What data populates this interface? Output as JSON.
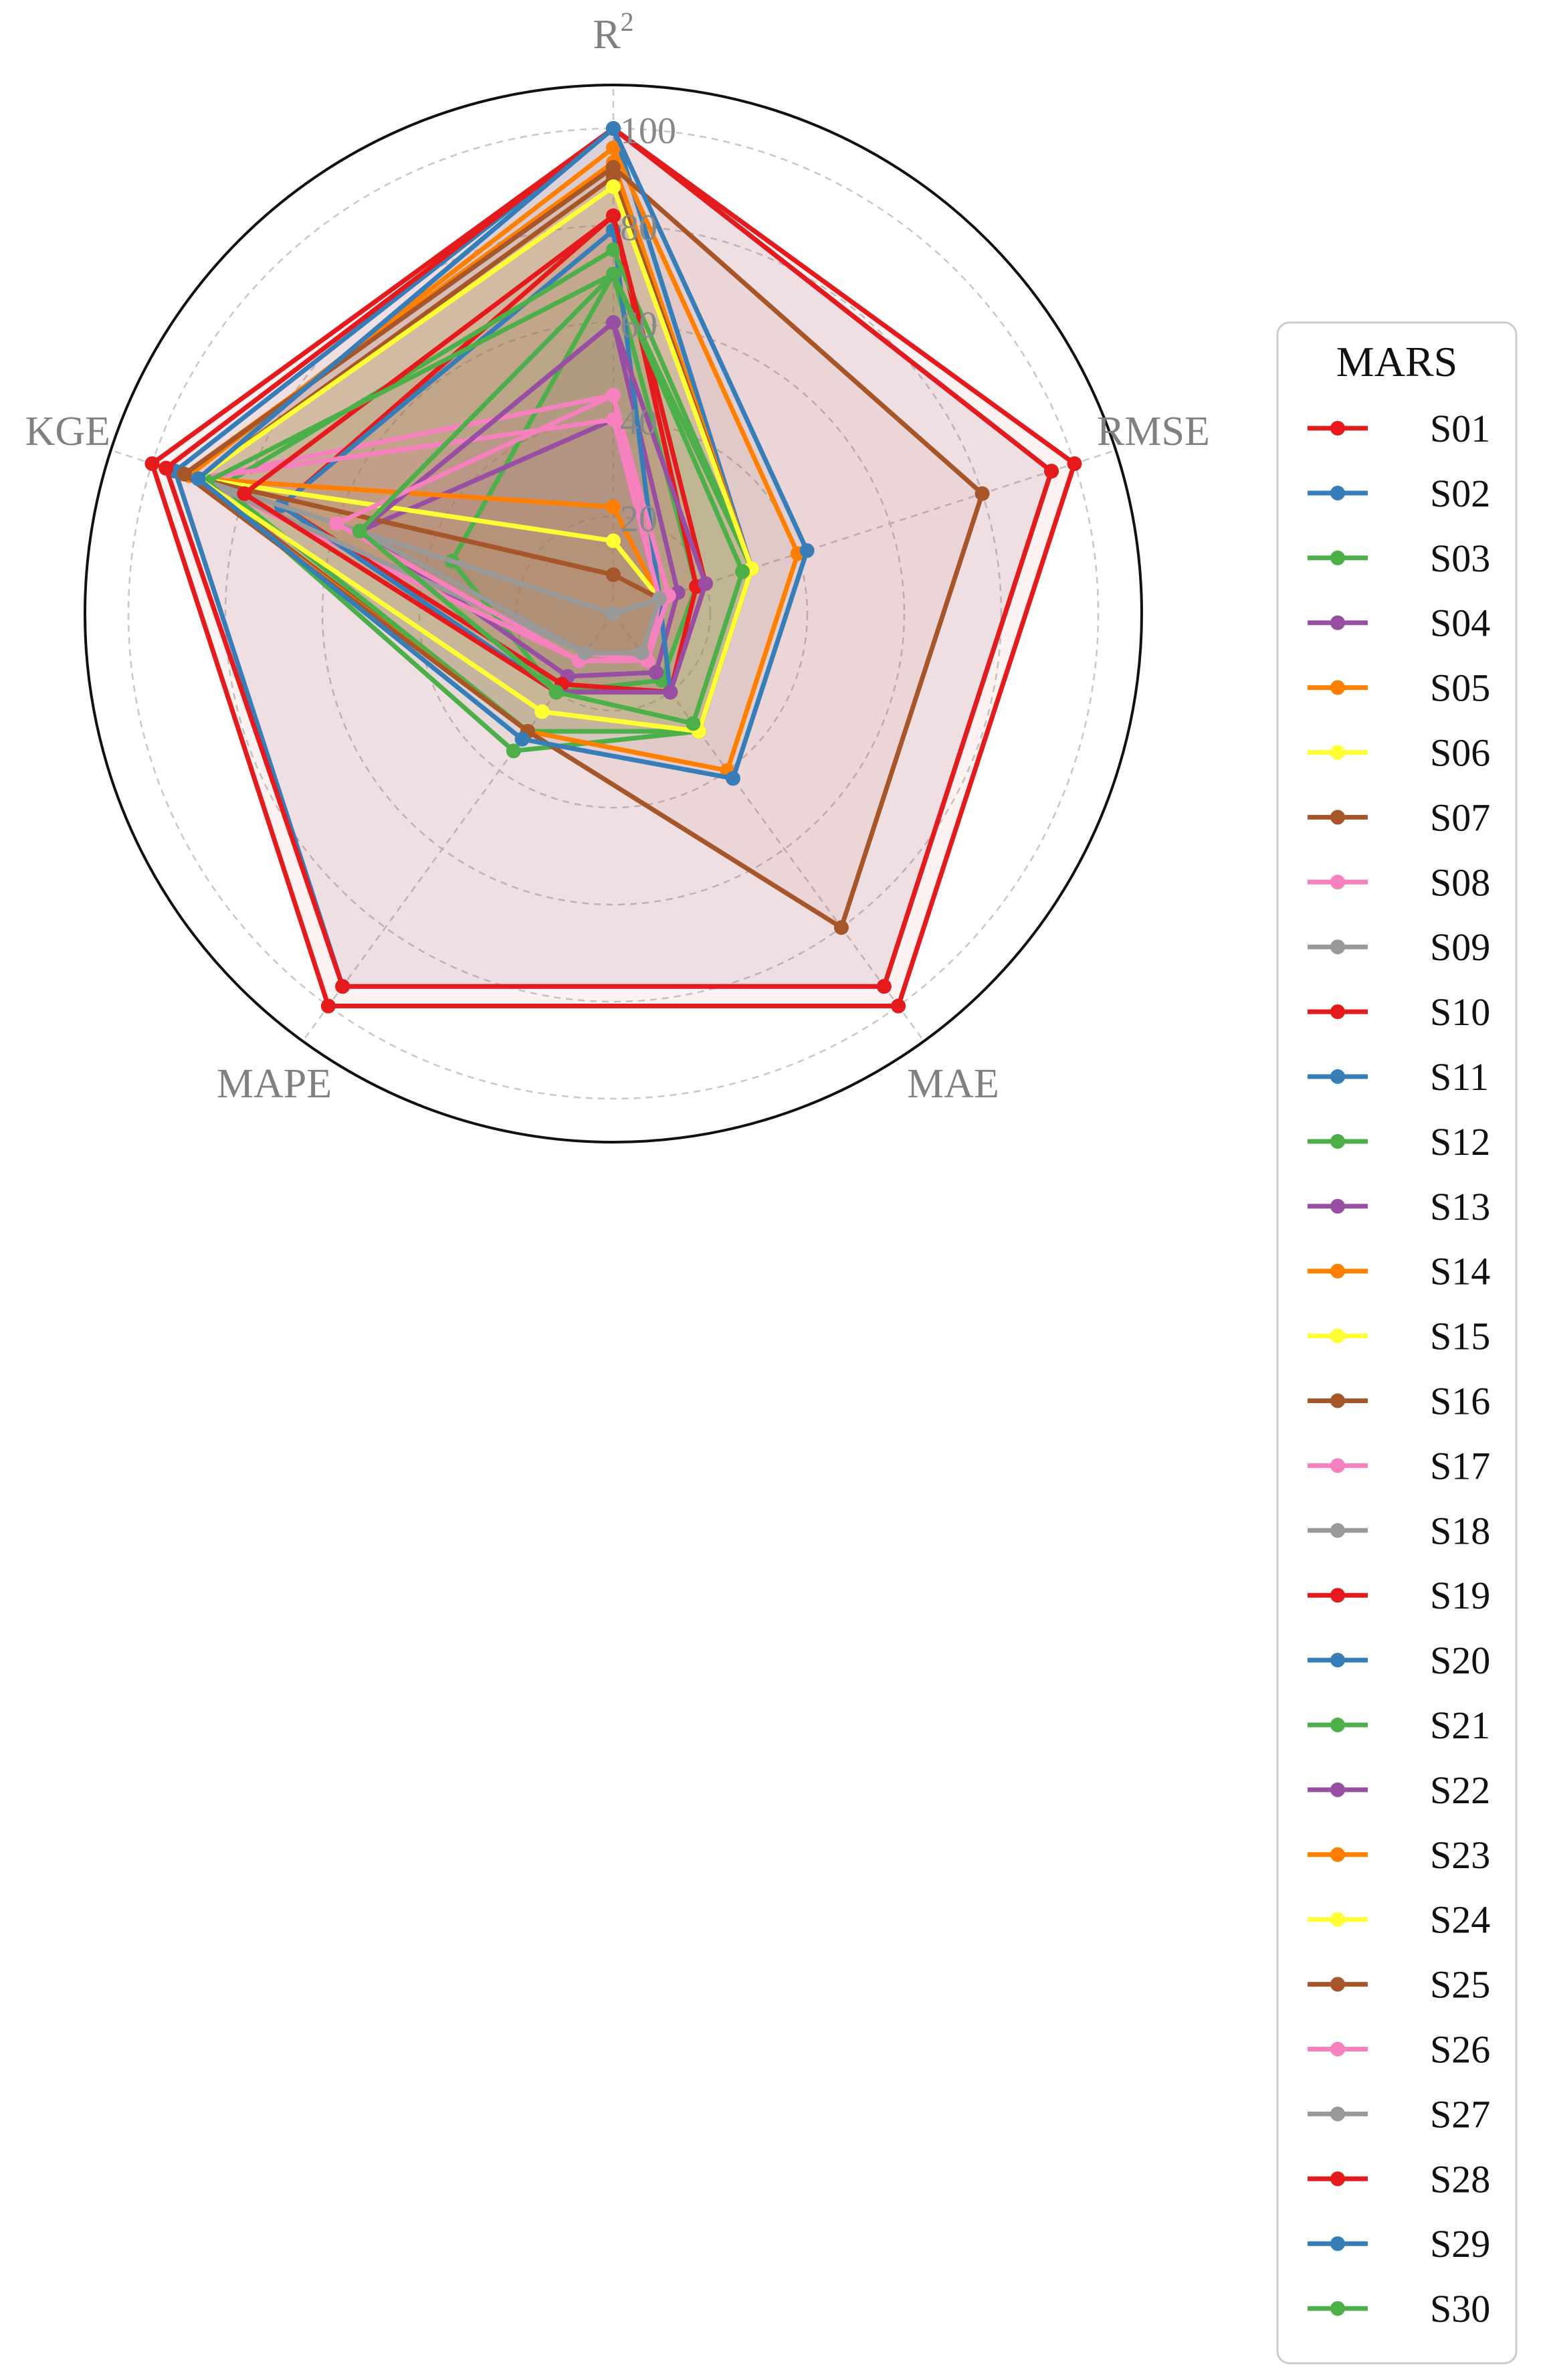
{
  "chart_data": {
    "type": "radar",
    "axes": [
      {
        "label": "R",
        "sup": "2"
      },
      {
        "label": "RMSE",
        "sup": ""
      },
      {
        "label": "MAE",
        "sup": ""
      },
      {
        "label": "MAPE",
        "sup": ""
      },
      {
        "label": "KGE",
        "sup": ""
      }
    ],
    "rlim": [
      0,
      100
    ],
    "radial_ticks": [
      20,
      40,
      60,
      80,
      100
    ],
    "grid": true,
    "legend": {
      "title": "MARS",
      "placement": "right"
    },
    "series": [
      {
        "name": "S01",
        "color": "#e41a1c",
        "values": [
          100,
          100,
          100,
          100,
          100
        ]
      },
      {
        "name": "S02",
        "color": "#377eb8",
        "values": [
          100,
          30,
          30,
          30,
          90
        ]
      },
      {
        "name": "S03",
        "color": "#4daf4a",
        "values": [
          70,
          18,
          17,
          20,
          35
        ]
      },
      {
        "name": "S04",
        "color": "#984ea3",
        "values": [
          60,
          14,
          15,
          16,
          55
        ]
      },
      {
        "name": "S05",
        "color": "#ff7f00",
        "values": [
          93,
          30,
          30,
          30,
          93
        ]
      },
      {
        "name": "S06",
        "color": "#ffff33",
        "values": [
          90,
          30,
          30,
          30,
          90
        ]
      },
      {
        "name": "S07",
        "color": "#a65628",
        "values": [
          90,
          30,
          30,
          30,
          90
        ]
      },
      {
        "name": "S08",
        "color": "#f781bf",
        "values": [
          45,
          10,
          12,
          12,
          90
        ]
      },
      {
        "name": "S09",
        "color": "#999999",
        "values": [
          0,
          10,
          10,
          10,
          90
        ]
      },
      {
        "name": "S10",
        "color": "#e41a1c",
        "values": [
          82,
          18,
          20,
          18,
          72
        ]
      },
      {
        "name": "S11",
        "color": "#377eb8",
        "values": [
          79,
          10,
          20,
          20,
          72
        ]
      },
      {
        "name": "S12",
        "color": "#4daf4a",
        "values": [
          75,
          30,
          30,
          30,
          85
        ]
      },
      {
        "name": "S13",
        "color": "#984ea3",
        "values": [
          40,
          10,
          10,
          10,
          55
        ]
      },
      {
        "name": "S14",
        "color": "#ff7f00",
        "values": [
          22,
          10,
          10,
          10,
          90
        ]
      },
      {
        "name": "S15",
        "color": "#ffff33",
        "values": [
          15,
          10,
          10,
          10,
          90
        ]
      },
      {
        "name": "S16",
        "color": "#a65628",
        "values": [
          8,
          10,
          10,
          10,
          90
        ]
      },
      {
        "name": "S17",
        "color": "#f781bf",
        "values": [
          40,
          10,
          12,
          10,
          90
        ]
      },
      {
        "name": "S18",
        "color": "#999999",
        "values": [
          0,
          10,
          10,
          10,
          90
        ]
      },
      {
        "name": "S19",
        "color": "#e41a1c",
        "values": [
          82,
          20,
          20,
          20,
          80
        ]
      },
      {
        "name": "S20",
        "color": "#377eb8",
        "values": [
          100,
          95,
          95,
          95,
          95
        ]
      },
      {
        "name": "S21",
        "color": "#4daf4a",
        "values": [
          70,
          30,
          30,
          35,
          88
        ]
      },
      {
        "name": "S22",
        "color": "#984ea3",
        "values": [
          60,
          20,
          20,
          20,
          55
        ]
      },
      {
        "name": "S23",
        "color": "#ff7f00",
        "values": [
          96,
          40,
          40,
          30,
          92
        ]
      },
      {
        "name": "S24",
        "color": "#ffff33",
        "values": [
          88,
          30,
          30,
          25,
          90
        ]
      },
      {
        "name": "S25",
        "color": "#a65628",
        "values": [
          92,
          80,
          80,
          30,
          93
        ]
      },
      {
        "name": "S26",
        "color": "#f781bf",
        "values": [
          45,
          12,
          12,
          12,
          60
        ]
      },
      {
        "name": "S27",
        "color": "#999999",
        "values": [
          0,
          10,
          10,
          10,
          55
        ]
      },
      {
        "name": "S28",
        "color": "#e41a1c",
        "values": [
          100,
          95,
          95,
          95,
          97
        ]
      },
      {
        "name": "S29",
        "color": "#377eb8",
        "values": [
          100,
          42,
          42,
          32,
          90
        ]
      },
      {
        "name": "S30",
        "color": "#4daf4a",
        "values": [
          70,
          28,
          28,
          20,
          55
        ]
      }
    ]
  }
}
